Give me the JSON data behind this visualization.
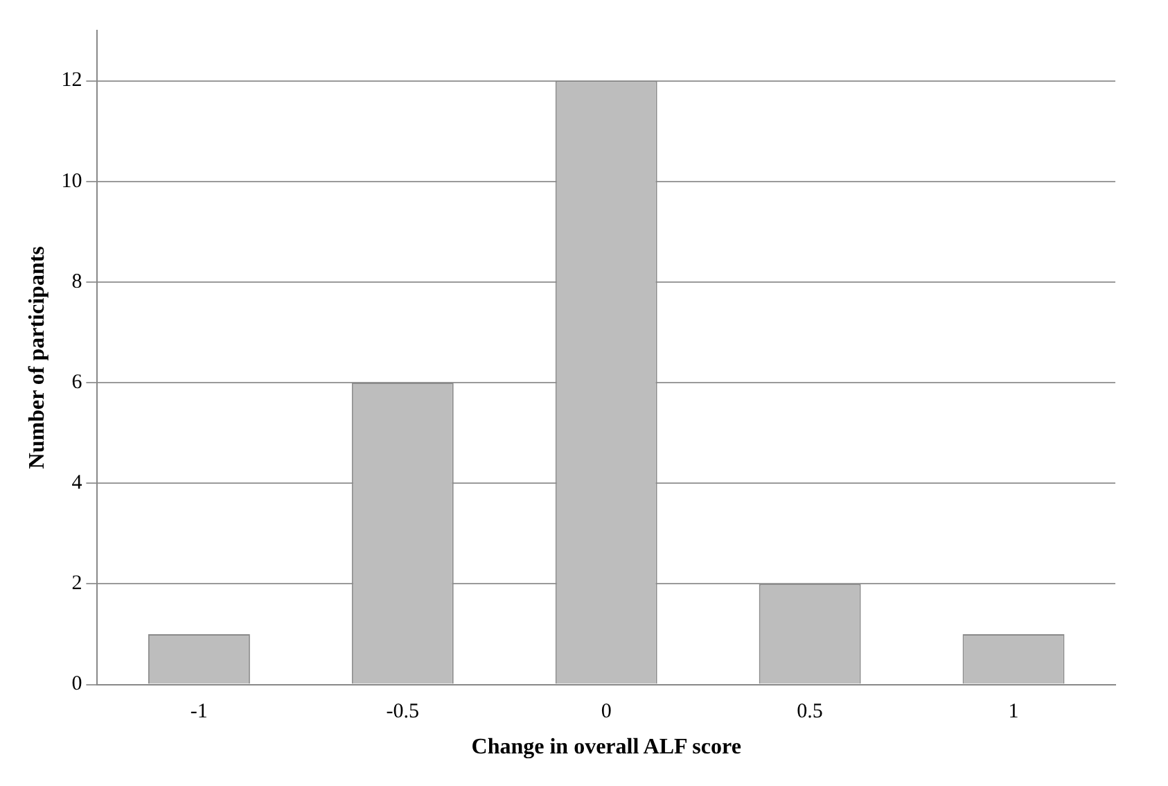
{
  "chart_data": {
    "type": "bar",
    "xlabel": "Change in overall ALF score",
    "ylabel": "Number of participants",
    "categories": [
      "-1",
      "-0.5",
      "0",
      "0.5",
      "1"
    ],
    "values": [
      1,
      6,
      12,
      2,
      1
    ],
    "color": "#bdbdbd",
    "ylim": [
      0,
      13
    ],
    "yticks": [
      0,
      2,
      4,
      6,
      8,
      10,
      12
    ],
    "grid": "y",
    "legend": false
  }
}
